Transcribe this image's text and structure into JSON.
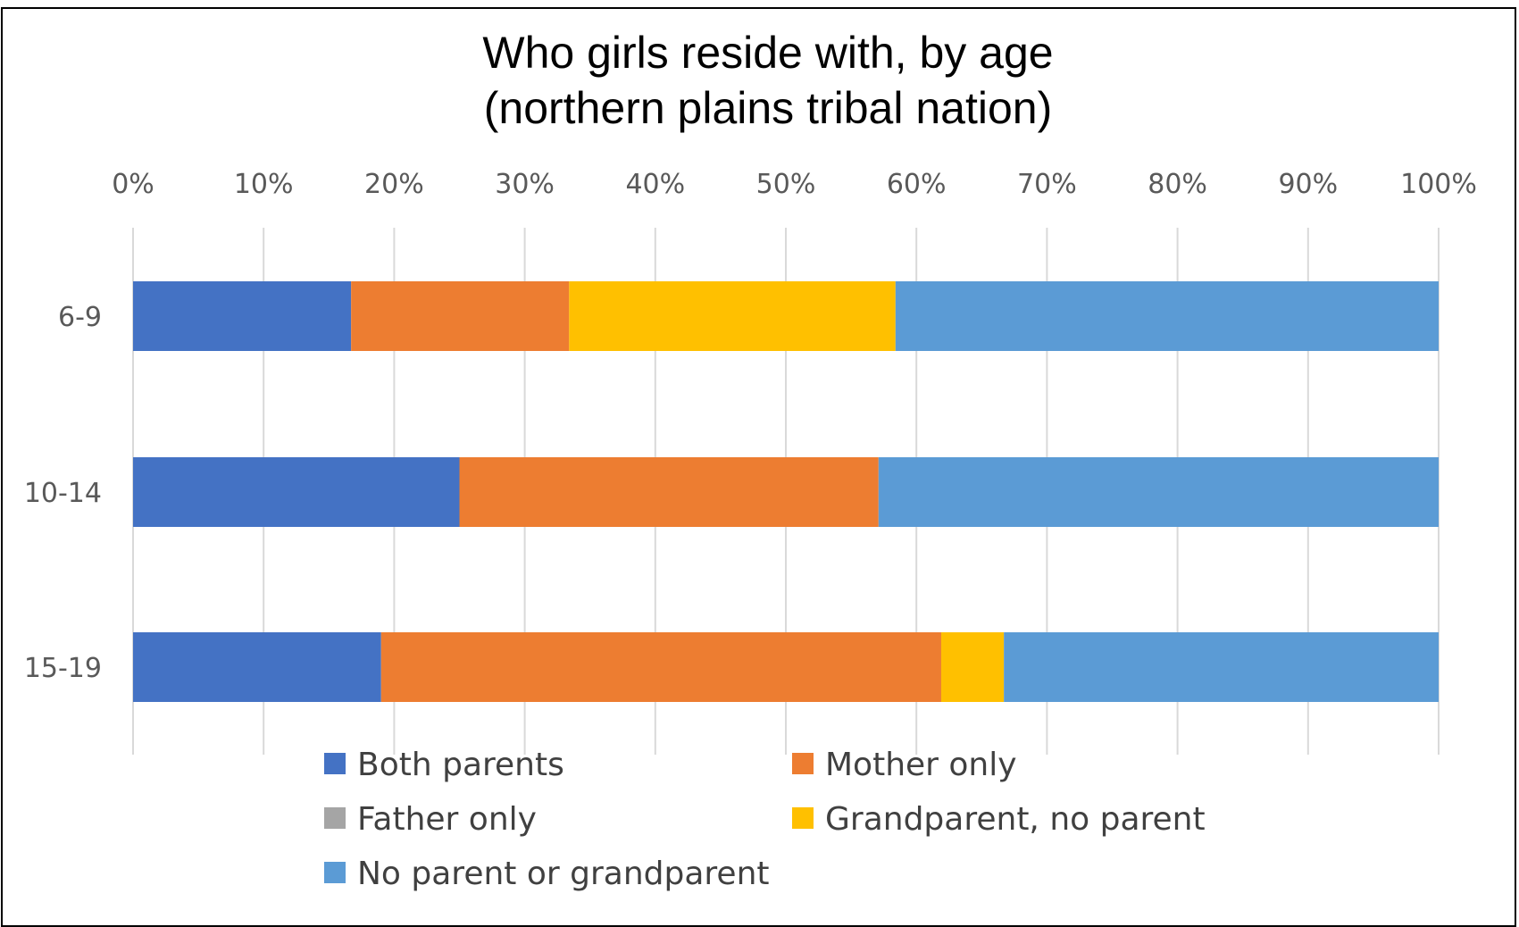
{
  "chart_data": {
    "type": "bar",
    "orientation": "horizontal",
    "stacked": "percent",
    "title": [
      "Who girls reside with, by age",
      "(northern plains tribal nation)"
    ],
    "xlabel": "",
    "ylabel": "",
    "xlim": [
      0,
      100
    ],
    "x_ticks": [
      "0%",
      "10%",
      "20%",
      "30%",
      "40%",
      "50%",
      "60%",
      "70%",
      "80%",
      "90%",
      "100%"
    ],
    "x_axis_position": "top",
    "grid": true,
    "legend_position": "bottom",
    "categories": [
      "6-9",
      "10-14",
      "15-19"
    ],
    "series": [
      {
        "name": "Both parents",
        "color": "#4472C4",
        "values": [
          16.7,
          25.0,
          19.0
        ]
      },
      {
        "name": "Mother only",
        "color": "#ED7D31",
        "values": [
          16.7,
          32.1,
          42.9
        ]
      },
      {
        "name": "Father only",
        "color": "#A5A5A5",
        "values": [
          0,
          0,
          0
        ]
      },
      {
        "name": "Grandparent, no parent",
        "color": "#FFC000",
        "values": [
          25.0,
          0,
          4.8
        ]
      },
      {
        "name": "No parent or grandparent",
        "color": "#5B9BD5",
        "values": [
          41.6,
          42.9,
          33.3
        ]
      }
    ]
  }
}
